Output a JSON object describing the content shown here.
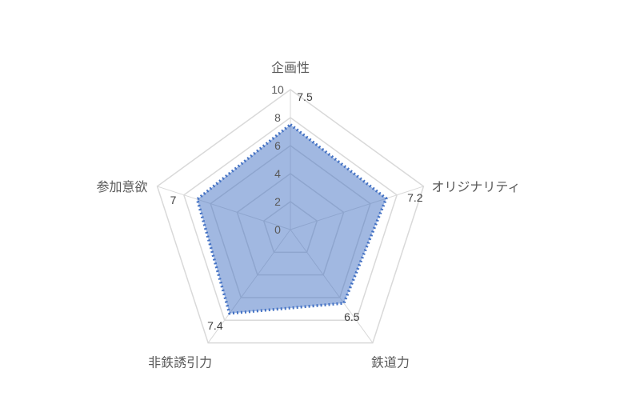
{
  "chart_data": {
    "type": "radar",
    "categories": [
      "企画性",
      "オリジナリティ",
      "鉄道力",
      "非鉄誘引力",
      "参加意欲"
    ],
    "series": [
      {
        "values": [
          7.5,
          7.2,
          6.5,
          7.4,
          7
        ]
      }
    ],
    "data_labels": [
      "7.5",
      "7.2",
      "6.5",
      "7.4",
      "7"
    ],
    "radial_ticks": [
      "0",
      "2",
      "4",
      "6",
      "8",
      "10"
    ],
    "rlim": [
      0,
      10
    ],
    "grid": true,
    "legend": "none",
    "colors": {
      "series": "#4472c4",
      "grid": "#d9d9d9",
      "text": "#595959"
    }
  }
}
